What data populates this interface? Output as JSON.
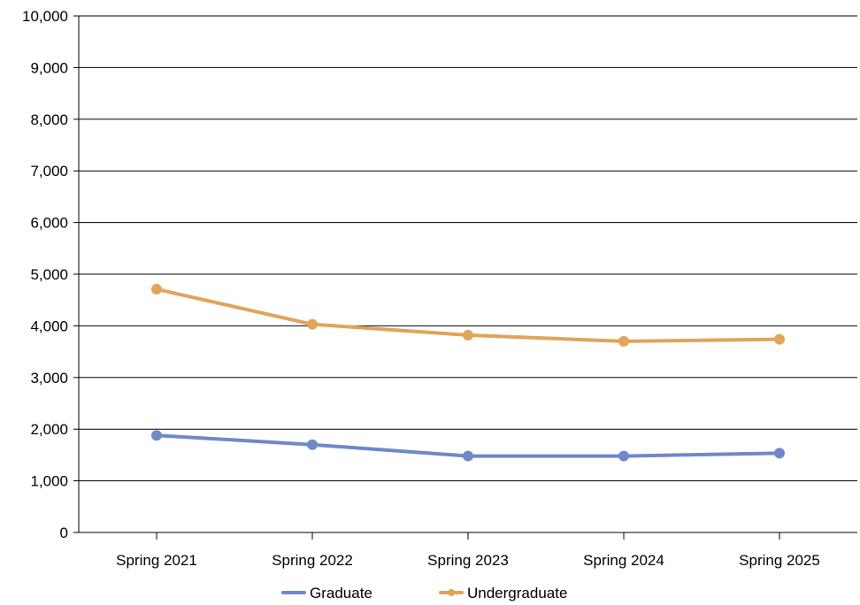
{
  "chart_data": {
    "type": "line",
    "title": "",
    "xlabel": "",
    "ylabel": "",
    "categories": [
      "Spring 2021",
      "Spring 2022",
      "Spring 2023",
      "Spring 2024",
      "Spring 2025"
    ],
    "ylim": [
      0,
      10000
    ],
    "ytick_values": [
      0,
      1000,
      2000,
      3000,
      4000,
      5000,
      6000,
      7000,
      8000,
      9000,
      10000
    ],
    "ytick_labels": [
      "0",
      "1,000",
      "2,000",
      "3,000",
      "4,000",
      "5,000",
      "6,000",
      "7,000",
      "8,000",
      "9,000",
      "10,000"
    ],
    "grid": "horizontal",
    "legend_position": "bottom",
    "series": [
      {
        "name": "Graduate",
        "color": "#7088c8",
        "values": [
          1880,
          1700,
          1480,
          1480,
          1535
        ]
      },
      {
        "name": "Undergraduate",
        "color": "#e0a45a",
        "values": [
          4710,
          4030,
          3820,
          3700,
          3740
        ]
      }
    ]
  }
}
